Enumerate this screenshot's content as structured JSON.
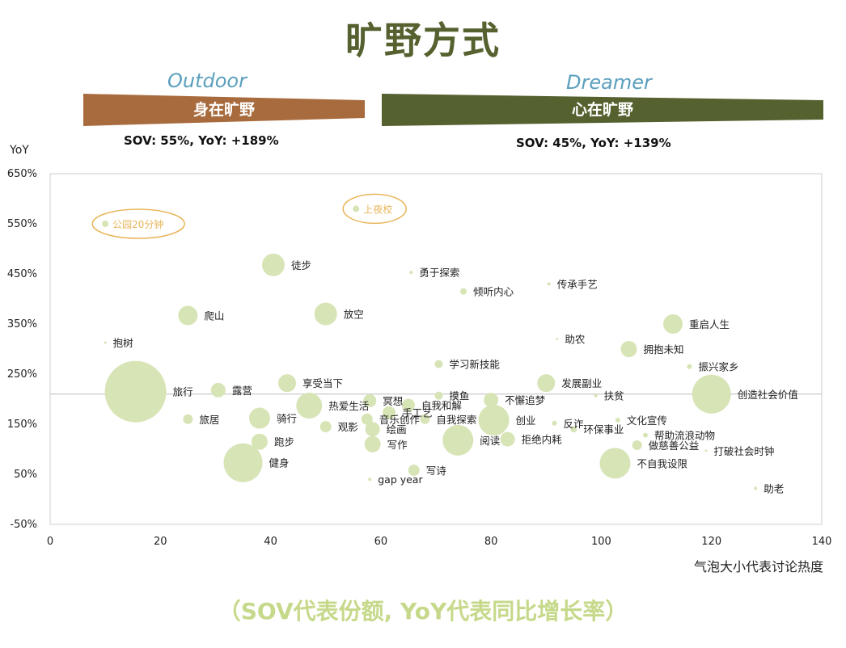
{
  "page": {
    "title": "旷野方式",
    "outdoor": {
      "en": "Outdoor",
      "zh": "身在旷野",
      "stat": "SOV: 55%, YoY: +189%",
      "color": "#a86b3e"
    },
    "dreamer": {
      "en": "Dreamer",
      "zh": "心在旷野",
      "stat": "SOV: 45%, YoY: +139%",
      "color": "#55612f"
    },
    "yoy_axis_label": "YoY",
    "x_axis_note": "气泡大小代表讨论热度",
    "footnote": "（SOV代表份额, YoY代表同比增长率）"
  },
  "chart_data": {
    "type": "scatter",
    "subtype": "bubble",
    "xlim": [
      0,
      140
    ],
    "ylim": [
      -50,
      650
    ],
    "x_ticks": [
      "0",
      "20",
      "40",
      "60",
      "80",
      "100",
      "120",
      "140"
    ],
    "x_tick_values": [
      0,
      20,
      40,
      60,
      80,
      100,
      120,
      140
    ],
    "y_ticks": [
      "650%",
      "550%",
      "450%",
      "350%",
      "250%",
      "150%",
      "50%",
      "-50%"
    ],
    "y_tick_values": [
      650,
      550,
      450,
      350,
      250,
      150,
      50,
      -50
    ],
    "reference_line_y": 210,
    "bubble_color": "#d7e4b6",
    "highlight_color": "#e8b65a",
    "points": [
      {
        "label": "公园20分钟",
        "x": 10,
        "y": 550,
        "size": 4,
        "highlight": true
      },
      {
        "label": "上夜校",
        "x": 55.5,
        "y": 580,
        "size": 4,
        "highlight": true
      },
      {
        "label": "徒步",
        "x": 40.5,
        "y": 468,
        "size": 14
      },
      {
        "label": "勇于探索",
        "x": 65.5,
        "y": 453,
        "size": 2
      },
      {
        "label": "倾听内心",
        "x": 75,
        "y": 415,
        "size": 4
      },
      {
        "label": "传承手艺",
        "x": 90.5,
        "y": 430,
        "size": 2
      },
      {
        "label": "爬山",
        "x": 25,
        "y": 367,
        "size": 12
      },
      {
        "label": "放空",
        "x": 50,
        "y": 370,
        "size": 14
      },
      {
        "label": "重启人生",
        "x": 113,
        "y": 350,
        "size": 12
      },
      {
        "label": "抱树",
        "x": 10,
        "y": 313,
        "size": 1
      },
      {
        "label": "助农",
        "x": 92,
        "y": 320,
        "size": 1
      },
      {
        "label": "拥抱未知",
        "x": 105,
        "y": 300,
        "size": 10
      },
      {
        "label": "学习新技能",
        "x": 70.5,
        "y": 270,
        "size": 5
      },
      {
        "label": "振兴家乡",
        "x": 116,
        "y": 265,
        "size": 3
      },
      {
        "label": "旅行",
        "x": 15.5,
        "y": 215,
        "size": 38
      },
      {
        "label": "露营",
        "x": 30.5,
        "y": 218,
        "size": 9
      },
      {
        "label": "享受当下",
        "x": 43,
        "y": 232,
        "size": 11
      },
      {
        "label": "发展副业",
        "x": 90,
        "y": 232,
        "size": 11
      },
      {
        "label": "创造社会价值",
        "x": 120,
        "y": 210,
        "size": 24
      },
      {
        "label": "冥想",
        "x": 58,
        "y": 197,
        "size": 8
      },
      {
        "label": "摸鱼",
        "x": 70.5,
        "y": 207,
        "size": 5
      },
      {
        "label": "扶贫",
        "x": 99,
        "y": 207,
        "size": 2
      },
      {
        "label": "热爱生活",
        "x": 47,
        "y": 187,
        "size": 16
      },
      {
        "label": "自我和解",
        "x": 65,
        "y": 188,
        "size": 8
      },
      {
        "label": "不懈追梦",
        "x": 80,
        "y": 198,
        "size": 9
      },
      {
        "label": "手工艺",
        "x": 61.5,
        "y": 173,
        "size": 8
      },
      {
        "label": "旅居",
        "x": 25,
        "y": 160,
        "size": 6
      },
      {
        "label": "骑行",
        "x": 38,
        "y": 162,
        "size": 13
      },
      {
        "label": "音乐创作",
        "x": 57.5,
        "y": 160,
        "size": 7
      },
      {
        "label": "自我探索",
        "x": 68,
        "y": 160,
        "size": 6
      },
      {
        "label": "创业",
        "x": 80.5,
        "y": 158,
        "size": 19
      },
      {
        "label": "文化宣传",
        "x": 103,
        "y": 158,
        "size": 3
      },
      {
        "label": "观影",
        "x": 50,
        "y": 145,
        "size": 7
      },
      {
        "label": "绘画",
        "x": 58.5,
        "y": 140,
        "size": 9
      },
      {
        "label": "反诈",
        "x": 91.5,
        "y": 152,
        "size": 3
      },
      {
        "label": "环保事业",
        "x": 95,
        "y": 140,
        "size": 4
      },
      {
        "label": "帮助流浪动物",
        "x": 108,
        "y": 128,
        "size": 3
      },
      {
        "label": "跑步",
        "x": 38,
        "y": 115,
        "size": 10
      },
      {
        "label": "写作",
        "x": 58.5,
        "y": 110,
        "size": 10
      },
      {
        "label": "阅读",
        "x": 74,
        "y": 118,
        "size": 19
      },
      {
        "label": "拒绝内耗",
        "x": 83,
        "y": 120,
        "size": 9
      },
      {
        "label": "做慈善公益",
        "x": 106.5,
        "y": 108,
        "size": 6
      },
      {
        "label": "打破社会时钟",
        "x": 119,
        "y": 97,
        "size": 1
      },
      {
        "label": "健身",
        "x": 35,
        "y": 73,
        "size": 24
      },
      {
        "label": "写诗",
        "x": 66,
        "y": 58,
        "size": 7
      },
      {
        "label": "不自我设限",
        "x": 102.5,
        "y": 72,
        "size": 19
      },
      {
        "label": "gap year",
        "x": 58,
        "y": 40,
        "size": 2
      },
      {
        "label": "助老",
        "x": 128,
        "y": 22,
        "size": 2
      }
    ]
  }
}
